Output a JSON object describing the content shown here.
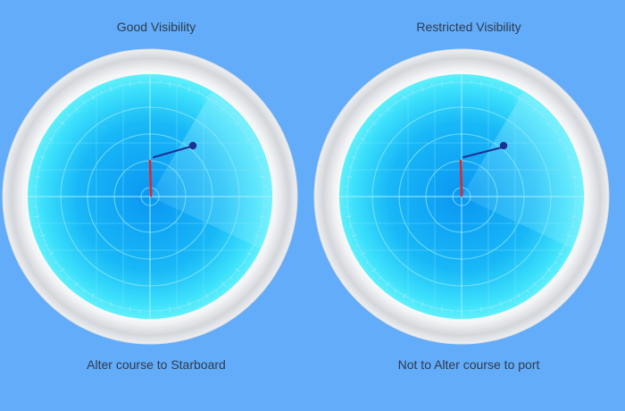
{
  "panels": [
    {
      "title": "Good Visibility",
      "caption": "Alter course to Starboard"
    },
    {
      "title": "Restricted Visibility",
      "caption": "Not to Alter course to port"
    }
  ],
  "colors": {
    "background": "#62acfa",
    "bezel_outer": "#e4e6ea",
    "bezel_inner": "#ffffff",
    "screen_rim": "#5ff0fb",
    "screen_center": "#0a96f2",
    "grid_line": "#8fe9fb",
    "sweep": "#9ff2ff",
    "own_ship_heading": "#e3232a",
    "target_vector": "#1e2f94",
    "text": "#2f3b4c"
  },
  "icons": {
    "radar": "radar-display",
    "target": "target-blip"
  }
}
